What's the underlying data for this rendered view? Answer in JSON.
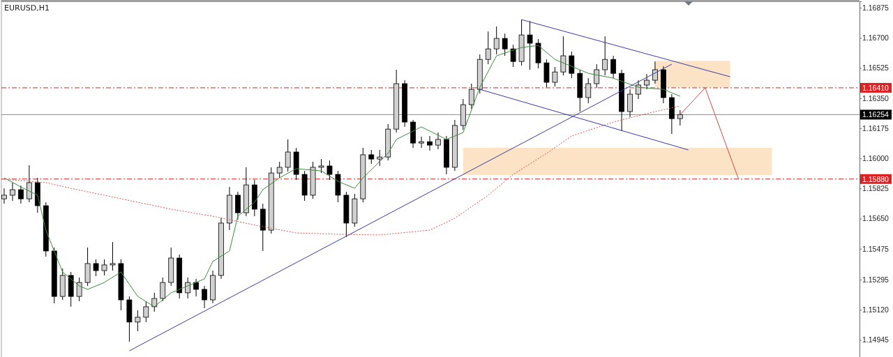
{
  "chart_data": {
    "type": "candlestick",
    "title": "EURUSD,H1",
    "categories": [
      null,
      null,
      null,
      null,
      null,
      null,
      null,
      null,
      null,
      null,
      null,
      null,
      null,
      null,
      null,
      null,
      null,
      null,
      null,
      null,
      null,
      null,
      null,
      null,
      null,
      null,
      null,
      null,
      null,
      null,
      null,
      null,
      null,
      null,
      null,
      null,
      null,
      null,
      null,
      null,
      null,
      null,
      null,
      null,
      null,
      null,
      null,
      null,
      null,
      null,
      null,
      null,
      null,
      null,
      null,
      null,
      null,
      null,
      null,
      null,
      null,
      null,
      null,
      null,
      null,
      null,
      null,
      null,
      null,
      null,
      null,
      null,
      null,
      null,
      null,
      null,
      null,
      null,
      null,
      null,
      null,
      null,
      null,
      null,
      null,
      null,
      null,
      null,
      null,
      null,
      null,
      null,
      null,
      null,
      null,
      null,
      null,
      null,
      null,
      null,
      null,
      null,
      null
    ],
    "ohlc": [
      [
        1.15765,
        1.15826,
        1.15737,
        1.15786
      ],
      [
        1.15786,
        1.15859,
        1.15753,
        1.15818
      ],
      [
        1.15818,
        1.15842,
        1.15737,
        1.15765
      ],
      [
        1.15765,
        1.1596,
        1.15745,
        1.15859
      ],
      [
        1.15859,
        1.15887,
        1.15684,
        1.15725
      ],
      [
        1.15725,
        1.15745,
        1.15429,
        1.15462
      ],
      [
        1.15462,
        1.15482,
        1.15158,
        1.15198
      ],
      [
        1.15198,
        1.1536,
        1.15178,
        1.1532
      ],
      [
        1.1532,
        1.1534,
        1.15138,
        1.15198
      ],
      [
        1.15198,
        1.15308,
        1.1517,
        1.15279
      ],
      [
        1.15279,
        1.15482,
        1.15259,
        1.15389
      ],
      [
        1.15389,
        1.15413,
        1.15316,
        1.15348
      ],
      [
        1.15348,
        1.15413,
        1.1532,
        1.15381
      ],
      [
        1.15381,
        1.15514,
        1.15348,
        1.15389
      ],
      [
        1.15389,
        1.15413,
        1.15117,
        1.15178
      ],
      [
        1.15178,
        1.15198,
        1.14935,
        1.15049
      ],
      [
        1.15049,
        1.15117,
        1.14996,
        1.15077
      ],
      [
        1.15077,
        1.1517,
        1.15049,
        1.15138
      ],
      [
        1.15138,
        1.15219,
        1.15109,
        1.15186
      ],
      [
        1.15186,
        1.15308,
        1.1517,
        1.15279
      ],
      [
        1.15279,
        1.15482,
        1.15259,
        1.15421
      ],
      [
        1.15421,
        1.15441,
        1.15186,
        1.15219
      ],
      [
        1.15219,
        1.15308,
        1.15186,
        1.15279
      ],
      [
        1.15279,
        1.153,
        1.15198,
        1.15239
      ],
      [
        1.15239,
        1.15259,
        1.1513,
        1.15178
      ],
      [
        1.15178,
        1.15348,
        1.15158,
        1.1532
      ],
      [
        1.1532,
        1.15656,
        1.153,
        1.15624
      ],
      [
        1.15624,
        1.15834,
        1.15583,
        1.15786
      ],
      [
        1.15786,
        1.15806,
        1.15644,
        1.15684
      ],
      [
        1.15684,
        1.15948,
        1.15664,
        1.15846
      ],
      [
        1.15846,
        1.15875,
        1.15664,
        1.15705
      ],
      [
        1.15705,
        1.15737,
        1.15462,
        1.15583
      ],
      [
        1.15583,
        1.15948,
        1.15563,
        1.15915
      ],
      [
        1.15915,
        1.1598,
        1.15887,
        1.15948
      ],
      [
        1.15948,
        1.1611,
        1.15923,
        1.16037
      ],
      [
        1.16037,
        1.16061,
        1.15875,
        1.15907
      ],
      [
        1.15907,
        1.15927,
        1.15753,
        1.15786
      ],
      [
        1.15786,
        1.1598,
        1.15765,
        1.15948
      ],
      [
        1.15948,
        1.15996,
        1.15915,
        1.15956
      ],
      [
        1.15956,
        1.15988,
        1.15875,
        1.15907
      ],
      [
        1.15907,
        1.15927,
        1.15745,
        1.15786
      ],
      [
        1.15786,
        1.15806,
        1.15543,
        1.15624
      ],
      [
        1.15624,
        1.15794,
        1.15603,
        1.15765
      ],
      [
        1.15765,
        1.16061,
        1.15745,
        1.16021
      ],
      [
        1.16021,
        1.16049,
        1.15968,
        1.15996
      ],
      [
        1.15996,
        1.16049,
        1.15956,
        1.16008
      ],
      [
        1.16008,
        1.16199,
        1.15988,
        1.1617
      ],
      [
        1.1617,
        1.16515,
        1.1615,
        1.16434
      ],
      [
        1.16434,
        1.16454,
        1.16183,
        1.16211
      ],
      [
        1.16211,
        1.16223,
        1.16061,
        1.16089
      ],
      [
        1.16089,
        1.16126,
        1.16061,
        1.16097
      ],
      [
        1.16097,
        1.1613,
        1.16045,
        1.16077
      ],
      [
        1.16077,
        1.1615,
        1.16053,
        1.1611
      ],
      [
        1.1611,
        1.1613,
        1.15907,
        1.15948
      ],
      [
        1.15948,
        1.16223,
        1.15927,
        1.16191
      ],
      [
        1.16191,
        1.16345,
        1.16166,
        1.16312
      ],
      [
        1.16312,
        1.16434,
        1.16288,
        1.16401
      ],
      [
        1.16401,
        1.16604,
        1.16377,
        1.16575
      ],
      [
        1.16575,
        1.16737,
        1.16547,
        1.16636
      ],
      [
        1.16636,
        1.16766,
        1.16604,
        1.16697
      ],
      [
        1.16697,
        1.16725,
        1.16596,
        1.16636
      ],
      [
        1.16636,
        1.1666,
        1.16531,
        1.16563
      ],
      [
        1.16563,
        1.16806,
        1.16539,
        1.16717
      ],
      [
        1.16717,
        1.16798,
        1.16515,
        1.16669
      ],
      [
        1.16669,
        1.16693,
        1.16523,
        1.16555
      ],
      [
        1.16555,
        1.16575,
        1.16413,
        1.16442
      ],
      [
        1.16442,
        1.16531,
        1.16417,
        1.16502
      ],
      [
        1.16502,
        1.16709,
        1.16482,
        1.16596
      ],
      [
        1.16596,
        1.1662,
        1.16466,
        1.16494
      ],
      [
        1.16494,
        1.16515,
        1.16272,
        1.16353
      ],
      [
        1.16353,
        1.16466,
        1.1632,
        1.16434
      ],
      [
        1.16434,
        1.16547,
        1.16409,
        1.16515
      ],
      [
        1.16515,
        1.16709,
        1.16482,
        1.16575
      ],
      [
        1.16575,
        1.16596,
        1.16466,
        1.16494
      ],
      [
        1.16494,
        1.16515,
        1.16158,
        1.16272
      ],
      [
        1.16272,
        1.16401,
        1.16239,
        1.16373
      ],
      [
        1.16373,
        1.16454,
        1.16345,
        1.16426
      ],
      [
        1.16426,
        1.1649,
        1.16401,
        1.16454
      ],
      [
        1.16454,
        1.16563,
        1.16434,
        1.16515
      ],
      [
        1.16515,
        1.16535,
        1.1632,
        1.16353
      ],
      [
        1.16353,
        1.16373,
        1.16142,
        1.16231
      ],
      [
        1.16231,
        1.1628,
        1.16191,
        1.16254
      ],
      null,
      null,
      null,
      null,
      null,
      null,
      null,
      null,
      null,
      null,
      null,
      null,
      null,
      null,
      null,
      null,
      null,
      null,
      null,
      null,
      null
    ],
    "series": [
      {
        "type": "line",
        "color": "#fde3c6",
        "values": [
          null,
          null,
          null,
          null,
          null,
          null,
          null,
          null,
          null,
          null,
          null,
          null,
          null,
          null,
          null,
          null,
          null,
          null,
          null,
          null,
          null,
          null,
          null,
          null,
          null,
          null,
          null,
          null,
          null,
          null,
          null,
          null,
          null,
          null,
          null,
          null,
          null,
          null,
          null,
          null,
          null,
          null,
          null,
          null,
          null,
          null,
          null,
          null,
          null,
          null,
          null,
          null,
          null,
          null,
          null,
          null,
          null,
          null,
          null,
          null,
          null,
          null,
          null,
          null,
          null,
          null,
          null,
          null,
          null,
          null,
          null,
          null,
          null,
          null,
          null,
          null,
          null,
          null,
          null,
          null,
          null,
          null,
          null,
          null,
          null,
          null,
          null,
          null,
          null,
          null,
          null,
          null,
          null,
          null,
          null,
          null,
          null,
          null,
          null,
          null,
          null,
          null,
          null
        ],
        "upper": [
          null,
          null,
          null,
          null,
          null,
          null,
          null,
          null,
          null,
          null,
          null,
          null,
          null,
          null,
          null,
          null,
          null,
          null,
          null,
          null,
          null,
          null,
          null,
          null,
          null,
          null,
          null,
          null,
          null,
          null,
          null,
          null,
          null,
          null,
          null,
          null,
          null,
          null,
          null,
          null,
          null,
          null,
          null,
          null,
          null,
          null,
          null,
          null,
          null,
          null,
          null,
          null,
          null,
          null,
          null,
          null,
          null,
          null,
          null,
          null,
          null,
          null,
          null,
          null,
          null,
          null,
          null,
          null,
          null,
          null,
          null,
          null,
          null,
          null,
          null,
          null,
          null,
          null,
          1.16567,
          1.16567,
          1.16567,
          1.16567,
          1.16567,
          1.16567,
          1.16567,
          1.16567,
          1.16567,
          1.16567,
          null,
          null,
          null,
          null,
          null,
          null,
          null,
          null,
          null,
          null,
          null,
          null,
          null,
          null,
          null
        ],
        "lower": [
          null,
          null,
          null,
          null,
          null,
          null,
          null,
          null,
          null,
          null,
          null,
          null,
          null,
          null,
          null,
          null,
          null,
          null,
          null,
          null,
          null,
          null,
          null,
          null,
          null,
          null,
          null,
          null,
          null,
          null,
          null,
          null,
          null,
          null,
          null,
          null,
          null,
          null,
          null,
          null,
          null,
          null,
          null,
          null,
          null,
          null,
          null,
          null,
          null,
          null,
          null,
          null,
          null,
          null,
          null,
          null,
          null,
          null,
          null,
          null,
          null,
          null,
          null,
          null,
          null,
          null,
          null,
          null,
          null,
          null,
          null,
          null,
          null,
          null,
          null,
          null,
          null,
          null,
          1.16413,
          1.16413,
          1.16413,
          1.16413,
          1.16413,
          1.16413,
          1.16413,
          1.16413,
          1.16413,
          1.16413,
          null,
          null,
          null,
          null,
          null,
          null,
          null,
          null,
          null,
          null,
          null,
          null,
          null,
          null,
          null
        ]
      },
      {
        "type": "line",
        "color": "#fde3c6",
        "values": [
          null,
          null,
          null,
          null,
          null,
          null,
          null,
          null,
          null,
          null,
          null,
          null,
          null,
          null,
          null,
          null,
          null,
          null,
          null,
          null,
          null,
          null,
          null,
          null,
          null,
          null,
          null,
          null,
          null,
          null,
          null,
          null,
          null,
          null,
          null,
          null,
          null,
          null,
          null,
          null,
          null,
          null,
          null,
          null,
          null,
          null,
          null,
          null,
          null,
          null,
          null,
          null,
          null,
          null,
          null,
          null,
          null,
          null,
          null,
          null,
          null,
          null,
          null,
          null,
          null,
          null,
          null,
          null,
          null,
          null,
          null,
          null,
          null,
          null,
          null,
          null,
          null,
          null,
          null,
          null,
          null,
          null,
          null,
          null,
          null,
          null,
          null,
          null,
          null,
          null,
          null,
          null,
          null,
          null,
          null,
          null,
          null,
          null,
          null,
          null,
          null,
          null,
          null
        ],
        "upper": [
          null,
          null,
          null,
          null,
          null,
          null,
          null,
          null,
          null,
          null,
          null,
          null,
          null,
          null,
          null,
          null,
          null,
          null,
          null,
          null,
          null,
          null,
          null,
          null,
          null,
          null,
          null,
          null,
          null,
          null,
          null,
          null,
          null,
          null,
          null,
          null,
          null,
          null,
          null,
          null,
          null,
          null,
          null,
          null,
          null,
          null,
          null,
          null,
          null,
          null,
          null,
          null,
          null,
          null,
          null,
          1.16061,
          1.16061,
          1.16061,
          1.16061,
          1.16061,
          1.16061,
          1.16061,
          1.16061,
          1.16061,
          1.16061,
          1.16061,
          1.16061,
          1.16061,
          1.16061,
          1.16061,
          1.16061,
          1.16061,
          1.16061,
          1.16061,
          1.16061,
          1.16061,
          1.16061,
          1.16061,
          1.16061,
          1.16061,
          1.16061,
          1.16061,
          1.16061,
          1.16061,
          1.16061,
          1.16061,
          1.16061,
          1.16061,
          1.16061,
          1.16061,
          1.16061,
          1.16061,
          1.16061,
          null,
          null,
          null,
          null,
          null,
          null,
          null,
          null,
          null,
          null
        ],
        "lower": [
          null,
          null,
          null,
          null,
          null,
          null,
          null,
          null,
          null,
          null,
          null,
          null,
          null,
          null,
          null,
          null,
          null,
          null,
          null,
          null,
          null,
          null,
          null,
          null,
          null,
          null,
          null,
          null,
          null,
          null,
          null,
          null,
          null,
          null,
          null,
          null,
          null,
          null,
          null,
          null,
          null,
          null,
          null,
          null,
          null,
          null,
          null,
          null,
          null,
          null,
          null,
          null,
          null,
          null,
          null,
          1.15903,
          1.15903,
          1.15903,
          1.15903,
          1.15903,
          1.15903,
          1.15903,
          1.15903,
          1.15903,
          1.15903,
          1.15903,
          1.15903,
          1.15903,
          1.15903,
          1.15903,
          1.15903,
          1.15903,
          1.15903,
          1.15903,
          1.15903,
          1.15903,
          1.15903,
          1.15903,
          1.15903,
          1.15903,
          1.15903,
          1.15903,
          1.15903,
          1.15903,
          1.15903,
          1.15903,
          1.15903,
          1.15903,
          1.15903,
          1.15903,
          1.15903,
          1.15903,
          1.15903,
          null,
          null,
          null,
          null,
          null,
          null,
          null,
          null,
          null,
          null
        ]
      },
      {
        "type": "line",
        "color": "#3c8c3c",
        "line_style": "solid",
        "values": [
          1.15887,
          null,
          1.15834,
          null,
          1.15786,
          1.15583,
          null,
          1.1534,
          null,
          1.15259,
          1.15239,
          null,
          1.15279,
          null,
          1.1534,
          null,
          1.15198,
          null,
          1.15138,
          null,
          1.15219,
          null,
          1.15259,
          null,
          1.153,
          1.15401,
          null,
          1.15462,
          1.15664,
          null,
          1.15745,
          1.15818,
          null,
          1.15887,
          null,
          1.1594,
          null,
          null,
          1.15927,
          null,
          1.15867,
          null,
          1.15826,
          1.15887,
          null,
          null,
          1.16029,
          1.1611,
          null,
          null,
          1.16183,
          null,
          null,
          1.1611,
          null,
          1.1615,
          null,
          1.16413,
          null,
          1.16596,
          null,
          null,
          1.16644,
          null,
          1.16656,
          null,
          1.16575,
          null,
          null,
          null,
          1.16494,
          null,
          null,
          1.16466,
          null,
          null,
          1.16413,
          null,
          null,
          1.16401,
          null,
          1.16361,
          null,
          null,
          null,
          null,
          null,
          null,
          null,
          null,
          null,
          null,
          null,
          null,
          null,
          null,
          null,
          null,
          null,
          null,
          null,
          null,
          null
        ]
      },
      {
        "type": "line",
        "color": "#e0554f",
        "line_style": "dotted",
        "values": [
          1.15879,
          null,
          null,
          null,
          null,
          1.15859,
          null,
          null,
          1.15826,
          null,
          null,
          null,
          1.15786,
          null,
          null,
          null,
          1.15745,
          null,
          null,
          null,
          1.15705,
          null,
          null,
          null,
          null,
          1.15664,
          null,
          null,
          null,
          null,
          null,
          1.15603,
          null,
          null,
          null,
          1.15567,
          null,
          null,
          null,
          null,
          1.15559,
          null,
          null,
          null,
          null,
          1.15555,
          null,
          null,
          null,
          null,
          null,
          1.15583,
          null,
          null,
          1.15652,
          null,
          null,
          null,
          1.15786,
          null,
          null,
          1.15907,
          null,
          null,
          null,
          1.16029,
          null,
          null,
          1.1613,
          null,
          null,
          null,
          null,
          1.16211,
          null,
          null,
          null,
          null,
          1.16272,
          null,
          null,
          1.16304,
          null,
          null,
          null,
          null,
          null,
          null,
          null,
          null,
          null,
          null,
          null,
          null,
          null,
          null,
          null,
          null,
          null,
          null,
          null,
          null,
          null
        ]
      },
      {
        "type": "line",
        "color": "#3a3aa8",
        "line_style": "solid",
        "values": [
          null,
          null,
          null,
          null,
          null,
          null,
          null,
          null,
          null,
          null,
          null,
          null,
          null,
          null,
          null,
          1.14882,
          null,
          null,
          null,
          null,
          null,
          null,
          null,
          null,
          null,
          null,
          null,
          null,
          null,
          null,
          null,
          null,
          null,
          null,
          null,
          null,
          null,
          null,
          null,
          null,
          null,
          null,
          null,
          null,
          null,
          null,
          null,
          null,
          null,
          null,
          null,
          null,
          null,
          null,
          null,
          null,
          null,
          null,
          null,
          null,
          null,
          null,
          null,
          null,
          null,
          null,
          null,
          null,
          null,
          null,
          null,
          null,
          null,
          null,
          null,
          null,
          null,
          null,
          null,
          null,
          1.16547,
          null,
          null,
          null,
          null,
          null,
          null,
          null,
          null,
          null,
          null,
          null,
          null,
          null,
          null,
          null,
          null,
          null,
          null,
          null,
          null,
          null,
          null
        ]
      },
      {
        "type": "line",
        "color": "#3a3aa8",
        "line_style": "solid",
        "values": [
          null,
          null,
          null,
          null,
          null,
          null,
          null,
          null,
          null,
          null,
          null,
          null,
          null,
          null,
          null,
          null,
          null,
          null,
          null,
          null,
          null,
          null,
          null,
          null,
          null,
          null,
          null,
          null,
          null,
          null,
          null,
          null,
          null,
          null,
          null,
          null,
          null,
          null,
          null,
          null,
          null,
          null,
          null,
          null,
          null,
          null,
          null,
          null,
          null,
          null,
          null,
          null,
          null,
          null,
          null,
          null,
          null,
          null,
          null,
          null,
          null,
          null,
          1.16806,
          null,
          null,
          null,
          null,
          null,
          null,
          null,
          null,
          null,
          null,
          null,
          null,
          null,
          null,
          null,
          null,
          null,
          null,
          null,
          null,
          null,
          null,
          null,
          null,
          1.16474,
          null,
          null,
          null,
          null,
          null,
          null,
          null,
          null,
          null,
          null,
          null,
          null,
          null,
          null,
          null
        ]
      },
      {
        "type": "line",
        "color": "#3a3aa8",
        "line_style": "solid",
        "values": [
          null,
          null,
          null,
          null,
          null,
          null,
          null,
          null,
          null,
          null,
          null,
          null,
          null,
          null,
          null,
          null,
          null,
          null,
          null,
          null,
          null,
          null,
          null,
          null,
          null,
          null,
          null,
          null,
          null,
          null,
          null,
          null,
          null,
          null,
          null,
          null,
          null,
          null,
          null,
          null,
          null,
          null,
          null,
          null,
          null,
          null,
          null,
          null,
          null,
          null,
          null,
          null,
          null,
          null,
          null,
          null,
          null,
          1.16401,
          null,
          null,
          null,
          null,
          null,
          null,
          null,
          null,
          null,
          null,
          null,
          null,
          null,
          null,
          null,
          null,
          null,
          null,
          null,
          null,
          null,
          null,
          null,
          null,
          1.16049,
          null,
          null,
          null,
          null,
          null,
          null,
          null,
          null,
          null,
          null,
          null,
          null,
          null,
          null,
          null,
          null,
          null,
          null,
          null,
          null
        ]
      },
      {
        "type": "line",
        "color": "#d04848",
        "line_style": "solid",
        "values": [
          null,
          null,
          null,
          null,
          null,
          null,
          null,
          null,
          null,
          null,
          null,
          null,
          null,
          null,
          null,
          null,
          null,
          null,
          null,
          null,
          null,
          null,
          null,
          null,
          null,
          null,
          null,
          null,
          null,
          null,
          null,
          null,
          null,
          null,
          null,
          null,
          null,
          null,
          null,
          null,
          null,
          null,
          null,
          null,
          null,
          null,
          null,
          null,
          null,
          null,
          null,
          null,
          null,
          null,
          null,
          null,
          null,
          null,
          null,
          null,
          null,
          null,
          null,
          null,
          null,
          null,
          null,
          null,
          null,
          null,
          null,
          null,
          null,
          null,
          null,
          null,
          null,
          null,
          null,
          null,
          null,
          1.16254,
          null,
          null,
          1.1641,
          null,
          null,
          null,
          1.1588,
          null,
          null,
          null,
          null,
          null,
          null,
          null,
          null,
          null,
          null,
          null,
          null,
          null,
          null
        ]
      }
    ],
    "ref_lines": [
      {
        "axis": "y",
        "value": 1.1641,
        "label": "1.16410",
        "color": "#e02020",
        "line_style": "dashed"
      },
      {
        "axis": "y",
        "value": 1.1588,
        "label": "1.15880",
        "color": "#e02020",
        "line_style": "dashed"
      },
      {
        "axis": "y",
        "value": 1.16254,
        "label": "1.16254",
        "color": "#000000",
        "line_style": "solid"
      }
    ],
    "ylim": [
      1.14846,
      1.16912
    ],
    "yticks": [
      {
        "value": 1.16875,
        "label": "1.16875"
      },
      {
        "value": 1.167,
        "label": "1.16700"
      },
      {
        "value": 1.16525,
        "label": "1.16525"
      },
      {
        "value": 1.1635,
        "label": "1.16350"
      },
      {
        "value": 1.16175,
        "label": "1.16175"
      },
      {
        "value": 1.16,
        "label": "1.16000"
      },
      {
        "value": 1.15825,
        "label": "1.15825"
      },
      {
        "value": 1.1565,
        "label": "1.15650"
      },
      {
        "value": 1.15475,
        "label": "1.15475"
      },
      {
        "value": 1.15295,
        "label": "1.15295"
      },
      {
        "value": 1.1512,
        "label": "1.15120"
      },
      {
        "value": 1.14945,
        "label": "1.14945"
      }
    ],
    "tick_labels": "y"
  }
}
